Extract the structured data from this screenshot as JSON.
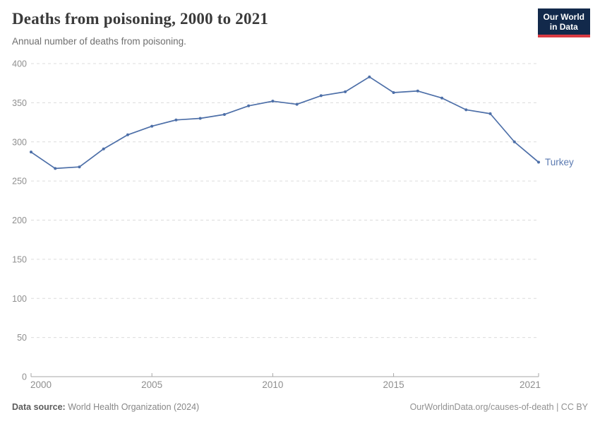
{
  "header": {
    "title": "Deaths from poisoning, 2000 to 2021",
    "subtitle": "Annual number of deaths from poisoning.",
    "logo": {
      "line1": "Our World",
      "line2": "in Data"
    }
  },
  "chart_data": {
    "type": "line",
    "title": "Deaths from poisoning, 2000 to 2021",
    "xlabel": "",
    "ylabel": "",
    "x": [
      2000,
      2001,
      2002,
      2003,
      2004,
      2005,
      2006,
      2007,
      2008,
      2009,
      2010,
      2011,
      2012,
      2013,
      2014,
      2015,
      2016,
      2017,
      2018,
      2019,
      2020,
      2021
    ],
    "series": [
      {
        "name": "Turkey",
        "color": "#4d6fa8",
        "label_color": "#5b7ab1",
        "values": [
          287,
          266,
          268,
          291,
          309,
          320,
          328,
          330,
          335,
          346,
          352,
          348,
          359,
          364,
          383,
          363,
          365,
          356,
          341,
          336,
          300,
          274
        ]
      }
    ],
    "ylim": [
      0,
      400
    ],
    "yticks": [
      0,
      50,
      100,
      150,
      200,
      250,
      300,
      350,
      400
    ],
    "xticks": [
      2000,
      2005,
      2010,
      2015,
      2021
    ],
    "grid": "horizontal-dashed",
    "legend_position": "line-end"
  },
  "colors": {
    "line": "#4d6fa8",
    "gridline": "#dcdcdc",
    "axis": "#a7a7a7",
    "tick_label": "#8f8f8f",
    "logo_navy": "#12294b",
    "logo_red": "#d93a42"
  },
  "footer": {
    "source_label": "Data source:",
    "source_value": " World Health Organization (2024)",
    "attribution": "OurWorldinData.org/causes-of-death | CC BY"
  }
}
